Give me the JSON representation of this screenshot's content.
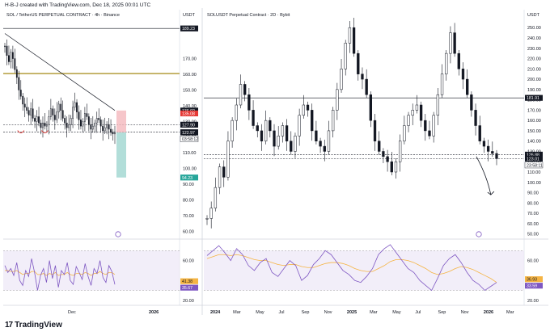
{
  "header": {
    "text": "H-B-J created with TradingView.com, Dec 18, 2025 00:01 UTC"
  },
  "footer": {
    "brand": "TradingView",
    "logo_icon": "tradingview-logo-icon"
  },
  "colors": {
    "candles": "#131722",
    "rsi_line": "#7e57c2",
    "rsi_ma": "#f5b443",
    "rsi_band": "#ede7f6",
    "target_zone": "#9fd6cf",
    "stop_zone": "#f4b8bd",
    "level_line": "#b8a44a",
    "red_marker": "#e53935"
  },
  "left_chart": {
    "title": "SOL / TetherUS PERPETUAL CONTRACT · 4h · Binance",
    "currency": "USDT",
    "y_ticks": [
      "170.00",
      "160.00",
      "150.00",
      "140.00",
      "130.00",
      "120.00",
      "110.00",
      "100.00",
      "90.00",
      "80.00",
      "70.00",
      "60.00"
    ],
    "price_labels": [
      {
        "text": "189.23",
        "color": "#131722"
      },
      {
        "text": "136.92",
        "color": "#131722"
      },
      {
        "text": "135.08",
        "color": "#e53935"
      },
      {
        "text": "127.90",
        "color": "#131722"
      },
      {
        "text": "123.19",
        "color": "#5d606b"
      },
      {
        "text": "122.97",
        "color": "#131722"
      },
      {
        "text": "03:58:12",
        "color": "#131722"
      },
      {
        "text": "94.23",
        "color": "#26a69a"
      }
    ],
    "x_ticks": [
      "Dec",
      "2026"
    ],
    "rsi_ticks": [
      "60.00",
      "40.00",
      "20.00"
    ],
    "rsi_labels": [
      {
        "text": "41.38",
        "color": "#f5b443"
      },
      {
        "text": "35.67",
        "color": "#7e57c2"
      }
    ]
  },
  "right_chart": {
    "title": "SOLUSDT Perpetual Contract · 2D · Bybit",
    "currency": "USDT",
    "y_ticks": [
      "250.00",
      "240.00",
      "230.00",
      "220.00",
      "210.00",
      "200.00",
      "190.00",
      "180.00",
      "170.00",
      "160.00",
      "150.00",
      "140.00",
      "130.00",
      "120.00",
      "110.00",
      "100.00",
      "90.00",
      "80.00",
      "70.00",
      "60.00",
      "50.00"
    ],
    "price_labels": [
      {
        "text": "181.91",
        "color": "#131722"
      },
      {
        "text": "126.88",
        "color": "#131722"
      },
      {
        "text": "123.01",
        "color": "#131722"
      },
      {
        "text": "23:58:11",
        "color": "#131722"
      }
    ],
    "x_ticks": [
      "2024",
      "Mar",
      "May",
      "Jul",
      "Sep",
      "Nov",
      "2025",
      "Mar",
      "May",
      "Jul",
      "Sep",
      "Nov",
      "2026",
      "Mar"
    ],
    "rsi_ticks": [
      "60.00",
      "40.00",
      "20.00"
    ],
    "rsi_labels": [
      {
        "text": "36.93",
        "color": "#f5b443"
      },
      {
        "text": "33.59",
        "color": "#7e57c2"
      }
    ]
  },
  "chart_data": [
    {
      "type": "candlestick",
      "title": "SOL / TetherUS PERPETUAL CONTRACT · 4h · Binance",
      "ylim": [
        55,
        195
      ],
      "levels": [
        189.23,
        160.5,
        127.9,
        123.19
      ],
      "trendline": [
        [
          0.0,
          186.0
        ],
        [
          1.0,
          137.0
        ]
      ],
      "target_zone": [
        94.23,
        122.97
      ],
      "stop_zone": [
        122.97,
        136.92
      ],
      "last_price": 122.97,
      "closes": [
        178,
        172,
        168,
        174,
        170,
        163,
        158,
        150,
        146,
        141,
        139,
        137,
        134,
        138,
        132,
        130,
        133,
        129,
        126,
        129,
        127,
        128,
        133,
        138,
        134,
        131,
        136,
        141,
        137,
        132,
        129,
        126,
        128,
        132,
        139,
        142,
        136,
        131,
        127,
        130,
        135,
        133,
        128,
        125,
        127,
        129,
        132,
        131,
        127,
        124,
        126,
        128,
        125,
        123,
        122,
        123
      ],
      "rsi": [
        55,
        48,
        52,
        45,
        58,
        40,
        35,
        50,
        44,
        62,
        48,
        30,
        45,
        52,
        38,
        60,
        42,
        55,
        33,
        50,
        46,
        58,
        40,
        36,
        54,
        48,
        41,
        57,
        44,
        35,
        52,
        47,
        60,
        43,
        38,
        55,
        49,
        36
      ],
      "rsi_ma": [
        50,
        50,
        49,
        49,
        50,
        48,
        46,
        47,
        47,
        49,
        49,
        46,
        46,
        47,
        45,
        47,
        46,
        48,
        45,
        46,
        46,
        48,
        46,
        45,
        47,
        47,
        46,
        48,
        47,
        45,
        47,
        47,
        49,
        47,
        46,
        48,
        48,
        46
      ]
    },
    {
      "type": "candlestick",
      "title": "SOLUSDT Perpetual Contract · 2D · Bybit",
      "ylim": [
        45,
        258
      ],
      "levels": [
        181.91,
        126.88,
        123.01
      ],
      "projection": [
        [
          0.93,
          125.0
        ],
        [
          0.98,
          88.0
        ]
      ],
      "last_price": 123.01,
      "closes": [
        65,
        75,
        95,
        115,
        105,
        140,
        160,
        175,
        195,
        185,
        170,
        155,
        150,
        140,
        160,
        150,
        135,
        145,
        155,
        140,
        130,
        145,
        165,
        175,
        170,
        150,
        140,
        135,
        130,
        150,
        170,
        190,
        210,
        235,
        250,
        225,
        205,
        200,
        185,
        160,
        140,
        130,
        125,
        120,
        110,
        120,
        140,
        155,
        165,
        170,
        175,
        160,
        150,
        145,
        165,
        185,
        205,
        225,
        245,
        225,
        210,
        200,
        185,
        170,
        155,
        140,
        135,
        130,
        128,
        123
      ],
      "rsi": [
        65,
        70,
        75,
        68,
        60,
        72,
        66,
        55,
        50,
        58,
        62,
        48,
        44,
        52,
        60,
        55,
        40,
        45,
        56,
        62,
        70,
        66,
        58,
        50,
        46,
        40,
        38,
        44,
        52,
        66,
        72,
        76,
        68,
        60,
        52,
        48,
        40,
        35,
        30,
        42,
        55,
        62,
        66,
        58,
        48,
        40,
        36,
        30,
        34,
        38
      ],
      "rsi_ma": [
        62,
        64,
        66,
        66,
        65,
        66,
        65,
        63,
        61,
        60,
        60,
        58,
        56,
        55,
        56,
        56,
        54,
        53,
        53,
        55,
        57,
        58,
        58,
        57,
        55,
        52,
        50,
        49,
        49,
        52,
        55,
        59,
        61,
        61,
        60,
        58,
        55,
        52,
        48,
        46,
        47,
        49,
        52,
        54,
        53,
        51,
        48,
        45,
        42,
        38
      ]
    }
  ]
}
